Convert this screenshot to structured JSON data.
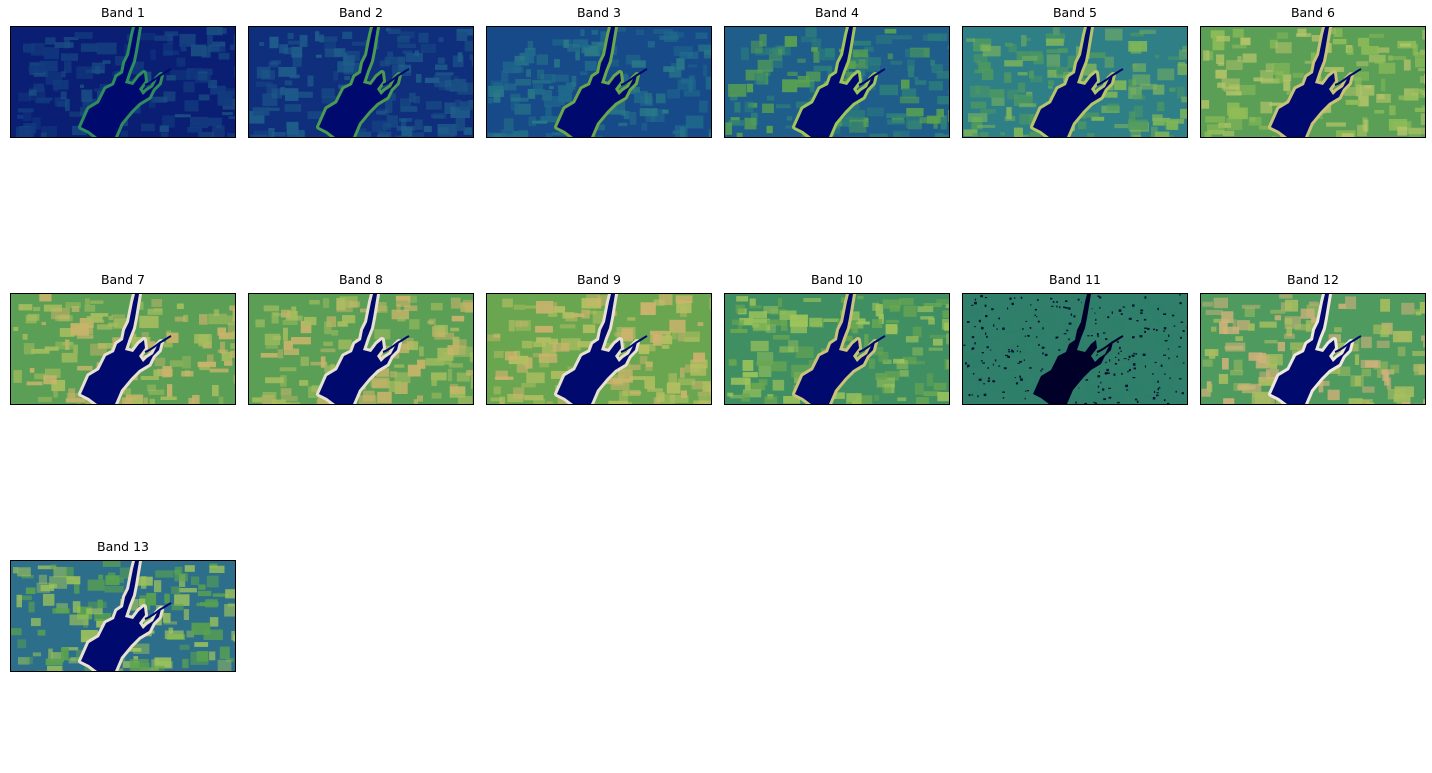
{
  "figure": {
    "panels": [
      {
        "title": "Band 1",
        "palette": [
          "#0a1f73",
          "#123b7f",
          "#1a4e84"
        ],
        "water": "#000a6e",
        "shore": "#2f8c5c"
      },
      {
        "title": "Band 2",
        "palette": [
          "#0f2f7d",
          "#1a4e84",
          "#1f5e8b"
        ],
        "water": "#000a6e",
        "shore": "#4a9a52"
      },
      {
        "title": "Band 3",
        "palette": [
          "#174a88",
          "#206a8c",
          "#2a7a88"
        ],
        "water": "#000a6e",
        "shore": "#6aa64a"
      },
      {
        "title": "Band 4",
        "palette": [
          "#1f5e8b",
          "#2d7f7a",
          "#5aa24f"
        ],
        "water": "#000a6e",
        "shore": "#9fc45a"
      },
      {
        "title": "Band 5",
        "palette": [
          "#2f7f86",
          "#4f9a5f",
          "#7fb55a"
        ],
        "water": "#000a6e",
        "shore": "#b8c46a"
      },
      {
        "title": "Band 6",
        "palette": [
          "#5a9f55",
          "#8fbc58",
          "#b7c46a"
        ],
        "water": "#000a6e",
        "shore": "#c9c27a"
      },
      {
        "title": "Band 7",
        "palette": [
          "#5a9f55",
          "#a6bd5f",
          "#c8b46a"
        ],
        "water": "#000a6e",
        "shore": "#e8e0d0"
      },
      {
        "title": "Band 8",
        "palette": [
          "#5a9f55",
          "#a6bd5f",
          "#c8b46a"
        ],
        "water": "#000a6e",
        "shore": "#e8e0d0"
      },
      {
        "title": "Band 9",
        "palette": [
          "#6aa650",
          "#b4bf62",
          "#cdb36e"
        ],
        "water": "#000a6e",
        "shore": "#e8e0d0"
      },
      {
        "title": "Band 10",
        "palette": [
          "#3f8f63",
          "#6aa650",
          "#9fc45a"
        ],
        "water": "#000a6e",
        "shore": "#c9c27a"
      },
      {
        "title": "Band 11",
        "palette": [
          "#2f7f6a",
          "#2f7f6a",
          "#2f7f6a"
        ],
        "water": "#000028",
        "shore": "#2f7f6a"
      },
      {
        "title": "Band 12",
        "palette": [
          "#4f9a5f",
          "#a6bd5f",
          "#d0b27a"
        ],
        "water": "#000a6e",
        "shore": "#f0e8dc"
      },
      {
        "title": "Band 13",
        "palette": [
          "#2d6f8a",
          "#5aa24f",
          "#9fc45a"
        ],
        "water": "#000a6e",
        "shore": "#e8e0d0"
      }
    ]
  }
}
